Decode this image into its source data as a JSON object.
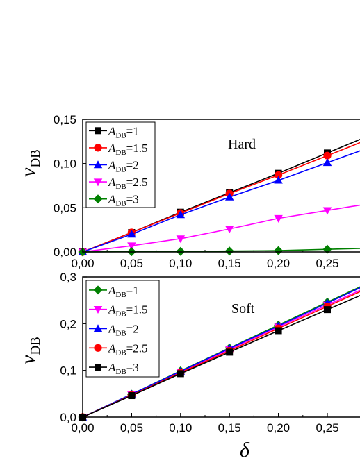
{
  "chart_data": [
    {
      "type": "line",
      "annotation": "Hard",
      "ylabel": {
        "base": "v",
        "sub": "DB"
      },
      "xlabel": "",
      "xlim": [
        0,
        0.26
      ],
      "ylim": [
        0,
        0.15
      ],
      "xticks": [
        "0,00",
        "0,05",
        "0,10",
        "0,15",
        "0,20",
        "0,25"
      ],
      "yticks": [
        "0,00",
        "0,05",
        "0,10",
        "0,15"
      ],
      "legend_position": "top-left",
      "x": [
        0,
        0.05,
        0.1,
        0.15,
        0.2,
        0.25
      ],
      "series": [
        {
          "name": "A_DB=1",
          "label_base": "A",
          "label_sub": "DB",
          "label_value": "=1",
          "color": "#000000",
          "marker": "square",
          "values": [
            0,
            0.022,
            0.045,
            0.067,
            0.089,
            0.112
          ]
        },
        {
          "name": "A_DB=1.5",
          "label_base": "A",
          "label_sub": "DB",
          "label_value": "=1.5",
          "color": "#ff0000",
          "marker": "circle",
          "values": [
            0,
            0.022,
            0.044,
            0.066,
            0.087,
            0.109
          ]
        },
        {
          "name": "A_DB=2",
          "label_base": "A",
          "label_sub": "DB",
          "label_value": "=2",
          "color": "#0000ff",
          "marker": "triangle-up",
          "values": [
            0,
            0.02,
            0.042,
            0.062,
            0.081,
            0.101
          ]
        },
        {
          "name": "A_DB=2.5",
          "label_base": "A",
          "label_sub": "DB",
          "label_value": "=2.5",
          "color": "#ff00ff",
          "marker": "triangle-down",
          "values": [
            0,
            0.007,
            0.015,
            0.026,
            0.038,
            0.047
          ]
        },
        {
          "name": "A_DB=3",
          "label_base": "A",
          "label_sub": "DB",
          "label_value": "=3",
          "color": "#008000",
          "marker": "diamond",
          "values": [
            0,
            0.0003,
            0.0006,
            0.001,
            0.0015,
            0.003
          ]
        }
      ]
    },
    {
      "type": "line",
      "annotation": "Soft",
      "ylabel": {
        "base": "v",
        "sub": "DB"
      },
      "xlabel": "δ",
      "xlim": [
        0,
        0.26
      ],
      "ylim": [
        0,
        0.3
      ],
      "xticks": [
        "0,00",
        "0,05",
        "0,10",
        "0,15",
        "0,20",
        "0,25"
      ],
      "yticks": [
        "0,0",
        "0,1",
        "0,2",
        "0,3"
      ],
      "legend_position": "top-left",
      "x": [
        0,
        0.05,
        0.1,
        0.15,
        0.2,
        0.25
      ],
      "series": [
        {
          "name": "A_DB=1",
          "label_base": "A",
          "label_sub": "DB",
          "label_value": "=1",
          "color": "#008000",
          "marker": "diamond",
          "values": [
            0,
            0.049,
            0.099,
            0.148,
            0.197,
            0.246
          ]
        },
        {
          "name": "A_DB=1.5",
          "label_base": "A",
          "label_sub": "DB",
          "label_value": "=1.5",
          "color": "#ff00ff",
          "marker": "triangle-down",
          "values": [
            0,
            0.048,
            0.097,
            0.145,
            0.193,
            0.24
          ]
        },
        {
          "name": "A_DB=2",
          "label_base": "A",
          "label_sub": "DB",
          "label_value": "=2",
          "color": "#0000ff",
          "marker": "triangle-up",
          "values": [
            0,
            0.049,
            0.098,
            0.147,
            0.195,
            0.244
          ]
        },
        {
          "name": "A_DB=2.5",
          "label_base": "A",
          "label_sub": "DB",
          "label_value": "=2.5",
          "color": "#ff0000",
          "marker": "circle",
          "values": [
            0,
            0.047,
            0.095,
            0.142,
            0.19,
            0.237
          ]
        },
        {
          "name": "A_DB=3",
          "label_base": "A",
          "label_sub": "DB",
          "label_value": "=3",
          "color": "#000000",
          "marker": "square",
          "values": [
            0,
            0.046,
            0.093,
            0.139,
            0.185,
            0.23
          ]
        }
      ]
    }
  ]
}
